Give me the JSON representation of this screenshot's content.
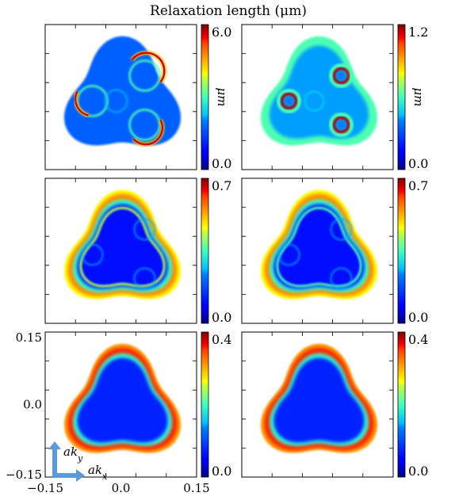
{
  "title": "Relaxation length (μm)",
  "chart_data": {
    "type": "heatmap",
    "title": "Relaxation length (μm)",
    "colormap": "jet",
    "colorbar_unit": "μm",
    "x_ticks": [
      "−0.15",
      "0.0",
      "0.15"
    ],
    "y_ticks": [
      "0.15",
      "0.0",
      "−0.15"
    ],
    "xlim": [
      -0.15,
      0.15
    ],
    "ylim": [
      -0.15,
      0.15
    ],
    "axis_arrows": {
      "x": "ak_x",
      "y": "ak_y",
      "x_label": "akx",
      "y_label": "aky"
    },
    "panels": [
      {
        "row": 0,
        "col": 0,
        "cbar_min": "0.0",
        "cbar_max": "6.0",
        "show_unit": true,
        "pattern": "rings",
        "base": 0.22,
        "edge": 0.22,
        "ring": 0.95
      },
      {
        "row": 0,
        "col": 1,
        "cbar_min": "0.0",
        "cbar_max": "1.2",
        "show_unit": true,
        "pattern": "dots",
        "base": 0.28,
        "edge": 0.45,
        "ring": 0.95
      },
      {
        "row": 1,
        "col": 0,
        "cbar_min": "0.0",
        "cbar_max": "0.7",
        "show_unit": false,
        "pattern": "band",
        "base": 0.14,
        "edge": 0.62,
        "ring": 0.45
      },
      {
        "row": 1,
        "col": 1,
        "cbar_min": "0.0",
        "cbar_max": "0.7",
        "show_unit": false,
        "pattern": "band2",
        "base": 0.14,
        "edge": 0.62,
        "ring": 0.35
      },
      {
        "row": 2,
        "col": 0,
        "cbar_min": "0.0",
        "cbar_max": "0.4",
        "show_unit": false,
        "pattern": "edge",
        "base": 0.16,
        "edge": 0.72,
        "ring": 0.0
      },
      {
        "row": 2,
        "col": 1,
        "cbar_min": "0.0",
        "cbar_max": "0.4",
        "show_unit": false,
        "pattern": "edge",
        "base": 0.16,
        "edge": 0.72,
        "ring": 0.0
      }
    ]
  }
}
